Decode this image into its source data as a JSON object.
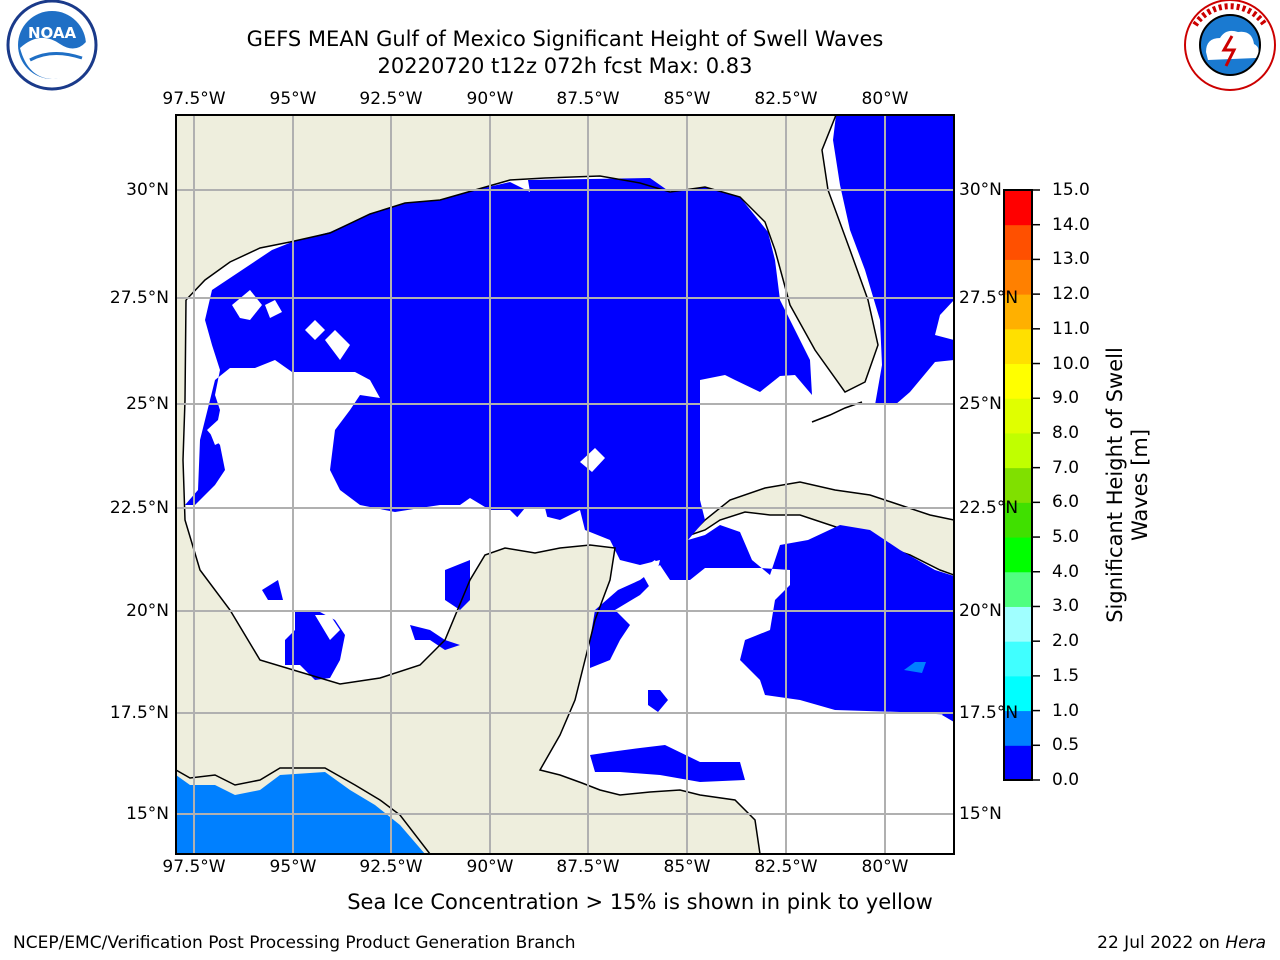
{
  "title": {
    "line1": "GEFS MEAN Gulf of Mexico Significant Height of Swell Waves",
    "line2": "20220720 t12z 072h fcst   Max: 0.83"
  },
  "map": {
    "lon_labels": [
      "97.5°W",
      "95°W",
      "92.5°W",
      "90°W",
      "87.5°W",
      "85°W",
      "82.5°W",
      "80°W"
    ],
    "lat_labels": [
      "30°N",
      "27.5°N",
      "25°N",
      "22.5°N",
      "20°N",
      "17.5°N",
      "15°N"
    ],
    "colors": {
      "land": "#eeeedd",
      "ocean_no_swell": "#ffffff",
      "swell_0_0.5": "#0000ff",
      "swell_0.5_1.0": "#0080ff",
      "grid": "#b0b0b0",
      "coast": "#000000"
    }
  },
  "colorbar": {
    "title_line1": "Significant Height of Swell",
    "title_line2": "Waves [m]",
    "tick_labels": [
      "0.0",
      "0.5",
      "1.0",
      "1.5",
      "2.0",
      "3.0",
      "4.0",
      "5.0",
      "6.0",
      "7.0",
      "8.0",
      "9.0",
      "10.0",
      "11.0",
      "12.0",
      "13.0",
      "14.0",
      "15.0"
    ],
    "colors": [
      "#0000ff",
      "#0080ff",
      "#00ffff",
      "#40ffff",
      "#a0ffff",
      "#50ff80",
      "#00ff00",
      "#40e000",
      "#80e000",
      "#c0ff00",
      "#e0ff00",
      "#ffff00",
      "#ffe000",
      "#ffb000",
      "#ff8000",
      "#ff5000",
      "#ff0000"
    ]
  },
  "logos": {
    "left": "NOAA",
    "right": "NATIONAL WEATHER SERVICE"
  },
  "caption": "Sea Ice Concentration > 15% is shown in pink to yellow",
  "footer": {
    "left": "NCEP/EMC/Verification Post Processing Product Generation Branch",
    "right_prefix": "22 Jul 2022 on ",
    "right_italic": "Hera"
  }
}
